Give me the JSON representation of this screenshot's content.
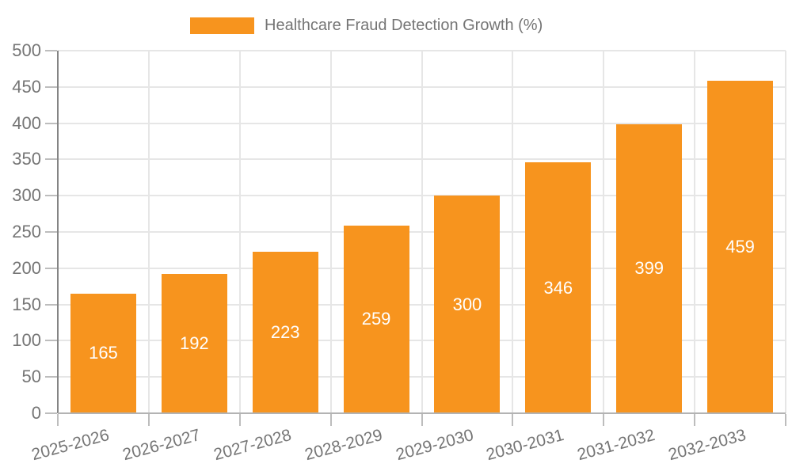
{
  "legend": {
    "label": "Healthcare Fraud Detection Growth (%)"
  },
  "chart_data": {
    "type": "bar",
    "title": "Healthcare Fraud Detection Growth (%)",
    "categories": [
      "2025-2026",
      "2026-2027",
      "2027-2028",
      "2028-2029",
      "2029-2030",
      "2030-2031",
      "2031-2032",
      "2032-2033"
    ],
    "values": [
      165,
      192,
      223,
      259,
      300,
      346,
      399,
      459
    ],
    "xlabel": "",
    "ylabel": "",
    "ylim": [
      0,
      500
    ],
    "yticks": [
      0,
      50,
      100,
      150,
      200,
      250,
      300,
      350,
      400,
      450,
      500
    ],
    "grid": true,
    "legend_position": "top",
    "bar_labels_inside": true,
    "colors": {
      "bar": "#F7941E",
      "bar_label": "#FFFFFF",
      "axis_text": "#757575",
      "grid": "#E6E6E6",
      "y_axis_line": "#848484",
      "x_axis_line": "#B3B3B3",
      "tick": "#BDBDBD"
    }
  }
}
